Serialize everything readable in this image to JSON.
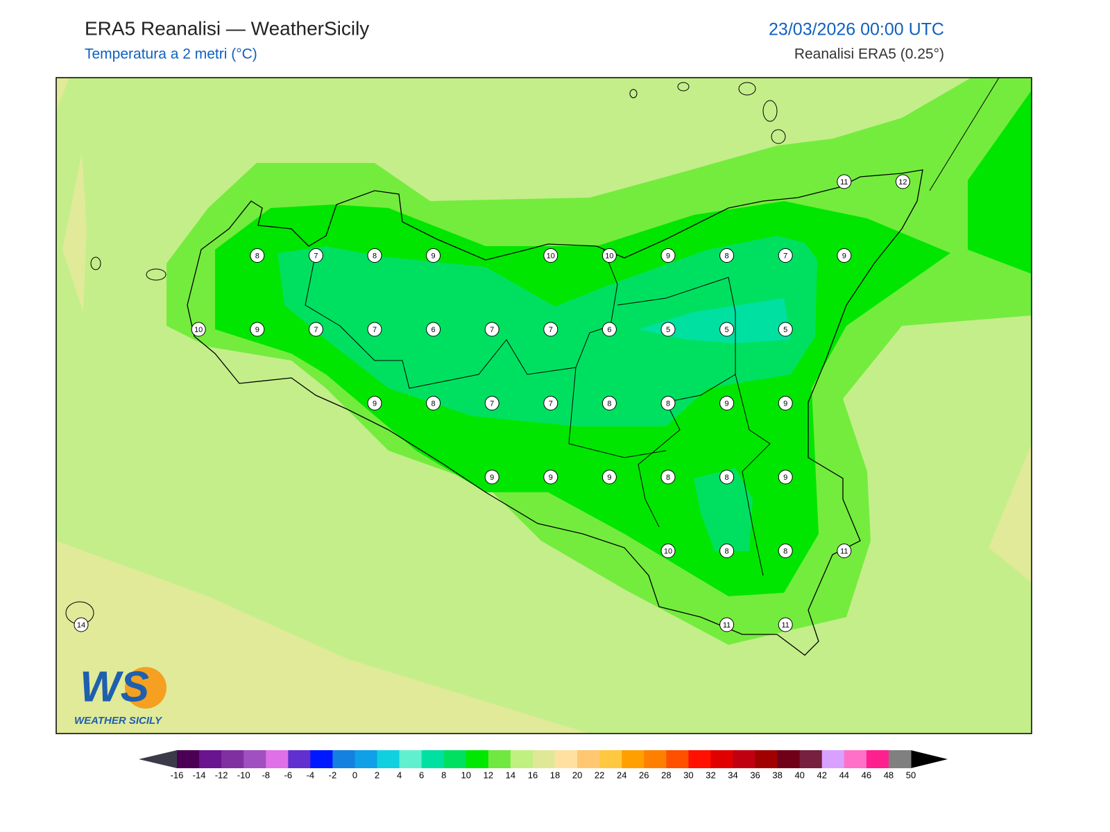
{
  "header": {
    "title": "ERA5 Reanalisi — WeatherSicily",
    "subtitle": "Temperatura a 2 metri (°C)",
    "date": "23/03/2026 00:00 UTC",
    "source": "Reanalisi ERA5 (0.25°)"
  },
  "map": {
    "stations": {
      "rows": [
        [
          null,
          null,
          null,
          null,
          null,
          null,
          null,
          null,
          null,
          null,
          null,
          null,
          null,
          11,
          12
        ],
        [
          null,
          null,
          null,
          8,
          7,
          8,
          9,
          null,
          10,
          10,
          9,
          8,
          7,
          9,
          null
        ],
        [
          null,
          null,
          10,
          9,
          7,
          7,
          6,
          7,
          7,
          6,
          5,
          5,
          5,
          null,
          null
        ],
        [
          null,
          null,
          null,
          null,
          null,
          9,
          8,
          7,
          7,
          8,
          8,
          9,
          9,
          null,
          null
        ],
        [
          null,
          null,
          null,
          null,
          null,
          null,
          null,
          9,
          9,
          9,
          8,
          8,
          9,
          null,
          null
        ],
        [
          null,
          null,
          null,
          null,
          null,
          null,
          null,
          null,
          null,
          null,
          10,
          8,
          8,
          11,
          null
        ],
        [
          14,
          null,
          null,
          null,
          null,
          null,
          null,
          null,
          null,
          null,
          null,
          11,
          11,
          null,
          null
        ]
      ]
    },
    "colorbar": {
      "ticks": [
        -16,
        -14,
        -12,
        -10,
        -8,
        -6,
        -4,
        -2,
        0,
        2,
        4,
        6,
        8,
        10,
        12,
        14,
        16,
        18,
        20,
        22,
        24,
        26,
        28,
        30,
        32,
        34,
        36,
        38,
        40,
        42,
        44,
        46,
        48,
        50
      ],
      "colors": [
        "#4b0055",
        "#6a1490",
        "#8030a0",
        "#a050c0",
        "#e070e8",
        "#6030d0",
        "#0018ff",
        "#1480e0",
        "#10a0e8",
        "#10d0e0",
        "#60f0d0",
        "#00e0a0",
        "#00e060",
        "#00e800",
        "#70e840",
        "#c0f080",
        "#e0e898",
        "#ffe0a0",
        "#ffc870",
        "#ffc840",
        "#ffa000",
        "#ff8000",
        "#ff5000",
        "#ff1000",
        "#e00000",
        "#c00010",
        "#a00000",
        "#700018",
        "#782040",
        "#d8a0ff",
        "#ff70c8",
        "#ff2090",
        "#808080",
        "#404040"
      ],
      "under_color": "#3a3a48",
      "over_color": "#000000"
    },
    "logo": {
      "mark": "WS",
      "name": "WEATHER SICILY"
    }
  }
}
